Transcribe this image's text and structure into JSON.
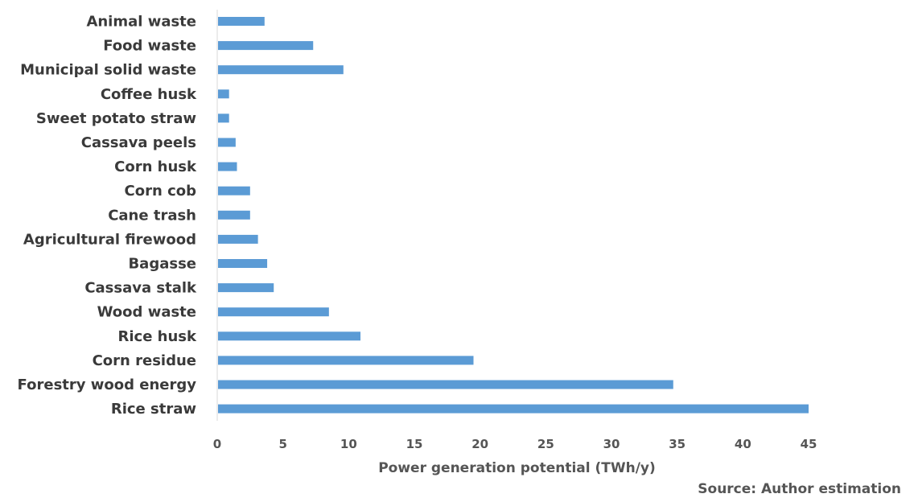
{
  "chart_data": {
    "type": "bar",
    "orientation": "horizontal",
    "categories": [
      "Animal waste",
      "Food waste",
      "Municipal solid waste",
      "Coffee husk",
      "Sweet potato straw",
      "Cassava peels",
      "Corn husk",
      "Corn cob",
      "Cane trash",
      "Agricultural firewood",
      "Bagasse",
      "Cassava stalk",
      "Wood waste",
      "Rice husk",
      "Corn residue",
      "Forestry wood energy",
      "Rice straw"
    ],
    "values": [
      3.6,
      7.3,
      9.6,
      0.9,
      0.9,
      1.4,
      1.5,
      2.5,
      2.5,
      3.1,
      3.8,
      4.3,
      8.5,
      10.9,
      19.5,
      34.7,
      45.0
    ],
    "xlabel": "Power generation potential (TWh/y)",
    "ylabel": "",
    "xlim": [
      0,
      45
    ],
    "xticks": [
      0,
      5,
      10,
      15,
      20,
      25,
      30,
      35,
      40,
      45
    ],
    "bar_color": "#5b9bd5",
    "grid": false,
    "legend": "none"
  },
  "source_note": "Source: Author estimation"
}
